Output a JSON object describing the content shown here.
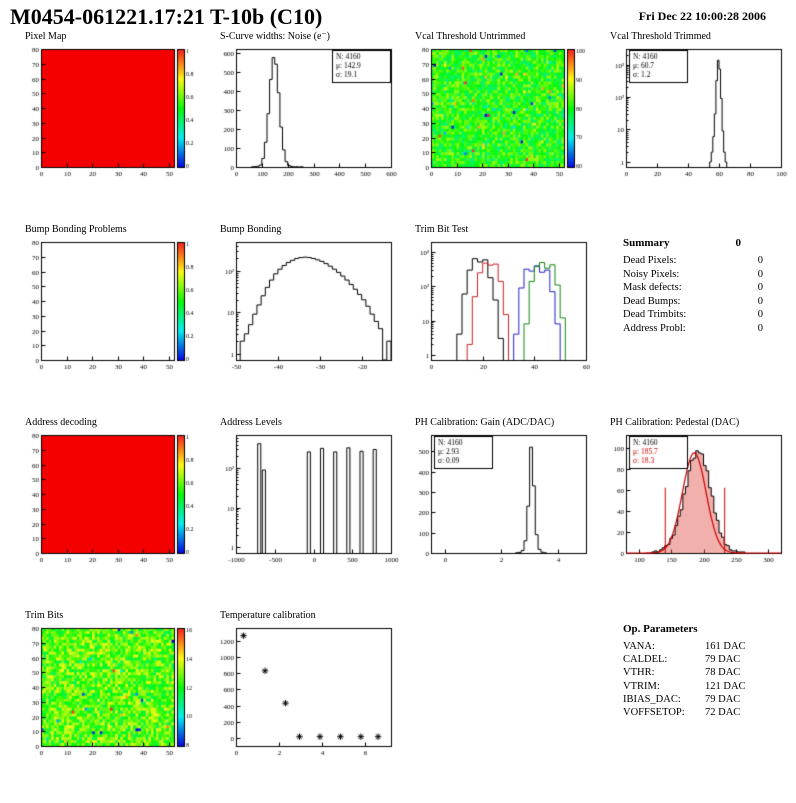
{
  "header": {
    "title": "M0454-061221.17:21 T-10b (C10)",
    "timestamp": "Fri Dec 22 10:00:28 2006"
  },
  "summary": {
    "title": "Summary",
    "total": "0",
    "rows": [
      {
        "label": "Dead Pixels:",
        "value": "0"
      },
      {
        "label": "Noisy Pixels:",
        "value": "0"
      },
      {
        "label": "Mask defects:",
        "value": "0"
      },
      {
        "label": "Dead Bumps:",
        "value": "0"
      },
      {
        "label": "Dead Trimbits:",
        "value": "0"
      },
      {
        "label": "Address Probl:",
        "value": "0"
      }
    ]
  },
  "op_parameters": {
    "title": "Op. Parameters",
    "rows": [
      {
        "label": "VANA:",
        "value": "161 DAC"
      },
      {
        "label": "CALDEL:",
        "value": "79 DAC"
      },
      {
        "label": "VTHR:",
        "value": "78 DAC"
      },
      {
        "label": "VTRIM:",
        "value": "121 DAC"
      },
      {
        "label": "IBIAS_DAC:",
        "value": "79 DAC"
      },
      {
        "label": "VOFFSETOP:",
        "value": "72 DAC"
      }
    ]
  },
  "chart_data": [
    {
      "id": "pixel_map",
      "type": "heatmap",
      "title": "Pixel Map",
      "fill": "red",
      "xlim": [
        0,
        52
      ],
      "xticks": [
        0,
        10,
        20,
        30,
        40,
        50
      ],
      "ylim": [
        0,
        80
      ],
      "yticks": [
        0,
        10,
        20,
        30,
        40,
        50,
        60,
        70,
        80
      ],
      "colorbar": {
        "labels": [
          "1",
          "0.8",
          "0.6",
          "0.4",
          "0.2",
          "0"
        ]
      }
    },
    {
      "id": "scurve_noise",
      "type": "hist",
      "title": "S-Curve widths: Noise (e⁻)",
      "xlim": [
        0,
        600
      ],
      "xticks": [
        0,
        100,
        200,
        300,
        400,
        500,
        600
      ],
      "ylim": [
        0,
        620
      ],
      "yticks": [
        0,
        100,
        200,
        300,
        400,
        500,
        600
      ],
      "bins": {
        "x0": 60,
        "dx": 10,
        "counts": [
          1,
          2,
          4,
          10,
          45,
          130,
          280,
          460,
          575,
          540,
          390,
          210,
          90,
          28,
          8,
          3,
          1,
          1,
          0,
          1
        ]
      },
      "stats": {
        "pos": "tr",
        "lines": [
          {
            "label": "N:",
            "value": "4160"
          },
          {
            "label": "μ:",
            "value": "142.9"
          },
          {
            "label": "σ:",
            "value": "19.1"
          }
        ]
      }
    },
    {
      "id": "vcal_threshold_untrimmed",
      "type": "heatmap",
      "title": "Vcal Threshold Untrimmed",
      "fill": "noise",
      "seed": 7,
      "noise_center": 0.52,
      "noise_spread": 0.14,
      "outlier_prob": 0.04,
      "xlim": [
        0,
        52
      ],
      "xticks": [
        0,
        10,
        20,
        30,
        40,
        50
      ],
      "ylim": [
        0,
        80
      ],
      "yticks": [
        0,
        10,
        20,
        30,
        40,
        50,
        60,
        70,
        80
      ],
      "colorbar": {
        "labels": [
          "100",
          "90",
          "80",
          "70",
          "60"
        ]
      }
    },
    {
      "id": "vcal_threshold_trimmed",
      "type": "hist",
      "title": "Vcal Threshold Trimmed",
      "xlim": [
        0,
        100
      ],
      "xticks": [
        0,
        20,
        40,
        60,
        80,
        100
      ],
      "ylog": true,
      "ylim": [
        0.7,
        3000
      ],
      "bins": {
        "x0": 54,
        "dx": 1,
        "counts": [
          1,
          2,
          6,
          30,
          320,
          1350,
          720,
          90,
          9,
          2,
          1
        ]
      },
      "stats": {
        "pos": "tl",
        "lines": [
          {
            "label": "N:",
            "value": "4160"
          },
          {
            "label": "μ:",
            "value": "60.7"
          },
          {
            "label": "σ:",
            "value": "1.2"
          }
        ]
      }
    },
    {
      "id": "bump_bonding_problems",
      "type": "heatmap",
      "title": "Bump Bonding Problems",
      "fill": "white",
      "xlim": [
        0,
        52
      ],
      "xticks": [
        0,
        10,
        20,
        30,
        40,
        50
      ],
      "ylim": [
        0,
        80
      ],
      "yticks": [
        0,
        10,
        20,
        30,
        40,
        50,
        60,
        70,
        80
      ],
      "colorbar": {
        "labels": [
          "1",
          "0.8",
          "0.6",
          "0.4",
          "0.2",
          "0"
        ]
      }
    },
    {
      "id": "bump_bonding",
      "type": "hist",
      "title": "Bump Bonding",
      "xlim": [
        -50,
        -13
      ],
      "xticks": [
        -50,
        -40,
        -30,
        -20
      ],
      "ylog": true,
      "ylim": [
        0.7,
        500
      ],
      "bins": {
        "x0": -49,
        "dx": 1,
        "counts": [
          2,
          3,
          5,
          9,
          15,
          25,
          40,
          60,
          85,
          110,
          135,
          160,
          180,
          200,
          210,
          215,
          210,
          200,
          185,
          170,
          150,
          130,
          110,
          92,
          75,
          60,
          47,
          36,
          27,
          20,
          14,
          9,
          6,
          4,
          0,
          2
        ]
      }
    },
    {
      "id": "trim_bit_test",
      "type": "multihist",
      "title": "Trim Bit Test",
      "xlim": [
        0,
        60
      ],
      "xticks": [
        0,
        20,
        40,
        60
      ],
      "ylog": true,
      "ylim": [
        0.7,
        2000
      ],
      "series": [
        {
          "name": "trim-bit-black",
          "color": "#000000",
          "x0": 10,
          "dx": 2,
          "counts": [
            4,
            60,
            300,
            650,
            520,
            600,
            180,
            40,
            3
          ]
        },
        {
          "name": "trim-bit-red",
          "color": "#cc2222",
          "x0": 14,
          "dx": 2,
          "counts": [
            2,
            50,
            250,
            480,
            420,
            450,
            140,
            15
          ]
        },
        {
          "name": "trim-bit-blue",
          "color": "#2222cc",
          "x0": 32,
          "dx": 2,
          "counts": [
            4,
            90,
            320,
            280,
            400,
            260,
            300,
            70,
            8
          ]
        },
        {
          "name": "trim-bit-green",
          "color": "#118811",
          "x0": 36,
          "dx": 2,
          "counts": [
            8,
            140,
            380,
            500,
            340,
            430,
            110,
            12
          ]
        }
      ]
    },
    {
      "id": "address_decoding",
      "type": "heatmap",
      "title": "Address decoding",
      "fill": "red",
      "xlim": [
        0,
        52
      ],
      "xticks": [
        0,
        10,
        20,
        30,
        40,
        50
      ],
      "ylim": [
        0,
        80
      ],
      "yticks": [
        0,
        10,
        20,
        30,
        40,
        50,
        60,
        70,
        80
      ],
      "colorbar": {
        "labels": [
          "1",
          "0.8",
          "0.6",
          "0.4",
          "0.2",
          "0"
        ]
      }
    },
    {
      "id": "address_levels",
      "type": "hist",
      "title": "Address Levels",
      "xlim": [
        -1000,
        1000
      ],
      "xticks": [
        -1000,
        -500,
        0,
        500,
        1000
      ],
      "ylog": true,
      "ylim": [
        0.7,
        700
      ],
      "spikes": [
        [
          -700,
          420
        ],
        [
          -640,
          90
        ],
        [
          -60,
          260
        ],
        [
          110,
          320
        ],
        [
          280,
          260
        ],
        [
          450,
          330
        ],
        [
          620,
          270
        ],
        [
          790,
          300
        ]
      ]
    },
    {
      "id": "ph_calibration_gain",
      "type": "hist",
      "title": "PH Calibration: Gain (ADC/DAC)",
      "xlim": [
        -0.5,
        5
      ],
      "xticks": [
        0,
        2,
        4
      ],
      "ylim": [
        0,
        580
      ],
      "yticks": [
        0,
        100,
        200,
        300,
        400,
        500
      ],
      "bins": {
        "x0": 2.5,
        "dx": 0.1,
        "counts": [
          1,
          3,
          12,
          60,
          230,
          520,
          330,
          90,
          18,
          4,
          1
        ]
      },
      "stats": {
        "pos": "tl",
        "lines": [
          {
            "label": "N:",
            "value": "4160"
          },
          {
            "label": "μ:",
            "value": "2.93"
          },
          {
            "label": "σ:",
            "value": "0.09"
          }
        ]
      }
    },
    {
      "id": "ph_calibration_pedestal",
      "type": "hist",
      "title": "PH Calibration: Pedestal (DAC)",
      "xlim": [
        80,
        320
      ],
      "xticks": [
        100,
        150,
        200,
        250,
        300
      ],
      "ylim": [
        0,
        112
      ],
      "yticks": [
        0,
        20,
        40,
        60,
        80,
        100
      ],
      "bins": {
        "x0": 120,
        "dx": 4,
        "counts": [
          1,
          2,
          1,
          3,
          5,
          7,
          8,
          14,
          17,
          26,
          35,
          41,
          56,
          63,
          78,
          88,
          90,
          97,
          95,
          94,
          83,
          78,
          62,
          54,
          38,
          31,
          19,
          15,
          8,
          7,
          3,
          2,
          2,
          1,
          1,
          1
        ]
      },
      "fill_rgba": "rgba(225,80,70,0.45)",
      "fit": {
        "mu": 185.7,
        "sigma": 18.3,
        "amp": 95,
        "color": "#cc0000"
      },
      "vlines": [
        140,
        232
      ],
      "vline_top": 62,
      "stats": {
        "pos": "tl",
        "lines": [
          {
            "label": "N:",
            "value": "4160"
          },
          {
            "label": "μ:",
            "value": "185.7",
            "color": "#cc0000"
          },
          {
            "label": "σ:",
            "value": "18.3",
            "color": "#cc0000"
          }
        ]
      }
    },
    {
      "id": "trim_bits",
      "type": "heatmap",
      "title": "Trim Bits",
      "fill": "noise",
      "seed": 21,
      "noise_center": 0.58,
      "noise_spread": 0.16,
      "outlier_prob": 0.02,
      "xlim": [
        0,
        52
      ],
      "xticks": [
        0,
        10,
        20,
        30,
        40,
        50
      ],
      "ylim": [
        0,
        80
      ],
      "yticks": [
        0,
        10,
        20,
        30,
        40,
        50,
        60,
        70,
        80
      ],
      "colorbar": {
        "labels": [
          "16",
          "14",
          "12",
          "10",
          "8"
        ]
      }
    },
    {
      "id": "temperature_calibration",
      "type": "scatter",
      "title": "Temperature calibration",
      "xlim": [
        0,
        7.2
      ],
      "xticks": [
        0,
        2,
        4,
        6
      ],
      "ylim": [
        -100,
        1360
      ],
      "yticks": [
        0,
        200,
        400,
        600,
        800,
        1000,
        1200
      ],
      "marker": "asterisk",
      "points": [
        [
          0.35,
          1265
        ],
        [
          1.35,
          830
        ],
        [
          2.3,
          430
        ],
        [
          2.95,
          15
        ],
        [
          3.9,
          15
        ],
        [
          4.85,
          15
        ],
        [
          5.8,
          15
        ],
        [
          6.6,
          15
        ]
      ]
    }
  ]
}
